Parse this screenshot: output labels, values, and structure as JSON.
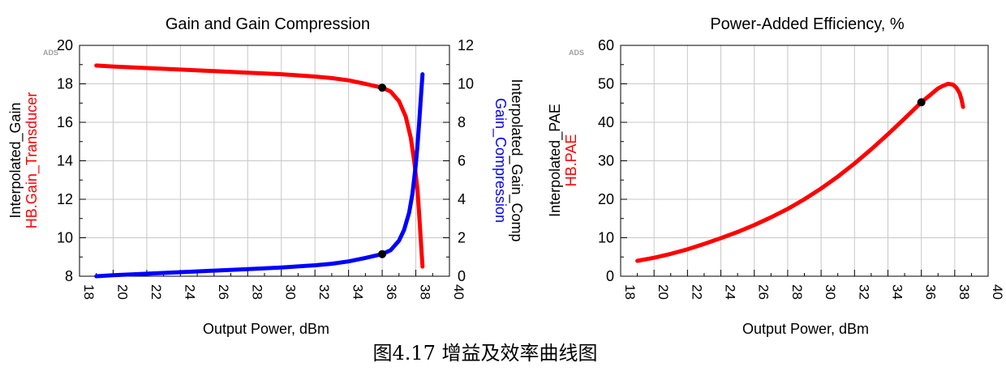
{
  "caption": "图4.17  增益及效率曲线图",
  "colors": {
    "red": "#ff0000",
    "blue": "#0000ff",
    "black": "#000000",
    "grid": "#c8c8c8"
  },
  "chart_data": [
    {
      "type": "line",
      "title": "Gain and Gain Compression",
      "xlabel": "Output Power, dBm",
      "ylabel_left": [
        "Interpolated_Gain",
        "HB.Gain_Transducer"
      ],
      "ylabel_right": [
        "Interpolated_Gain_Comp",
        "Gain_Compression"
      ],
      "corner_mark": "ADS",
      "xlim": [
        18,
        40
      ],
      "xticks": [
        18,
        20,
        22,
        24,
        26,
        28,
        30,
        32,
        34,
        36,
        38,
        40
      ],
      "ylim_left": [
        8,
        20
      ],
      "yticks_left": [
        8,
        10,
        12,
        14,
        16,
        18,
        20
      ],
      "ylim_right": [
        0,
        12
      ],
      "yticks_right": [
        0,
        2,
        4,
        6,
        8,
        10,
        12
      ],
      "grid": true,
      "series": [
        {
          "name": "HB.Gain_Transducer",
          "axis": "left",
          "color": "#ff0000",
          "x": [
            19.0,
            20.0,
            22.0,
            24.0,
            26.0,
            28.0,
            30.0,
            32.0,
            33.0,
            34.0,
            35.0,
            35.5,
            36.0,
            36.5,
            37.0,
            37.4,
            37.7,
            37.9,
            38.1,
            38.2,
            38.3,
            38.4
          ],
          "y": [
            18.95,
            18.9,
            18.82,
            18.74,
            18.66,
            18.58,
            18.5,
            18.38,
            18.3,
            18.18,
            18.0,
            17.9,
            17.8,
            17.6,
            17.1,
            16.3,
            15.2,
            14.0,
            12.5,
            11.2,
            9.8,
            8.5
          ]
        },
        {
          "name": "Gain_Compression",
          "axis": "right",
          "color": "#0000ff",
          "x": [
            19.0,
            20.0,
            22.0,
            24.0,
            26.0,
            28.0,
            30.0,
            32.0,
            33.0,
            34.0,
            35.0,
            35.5,
            36.0,
            36.5,
            37.0,
            37.3,
            37.6,
            37.8,
            38.0,
            38.1,
            38.2,
            38.3,
            38.4
          ],
          "y": [
            0.0,
            0.05,
            0.13,
            0.21,
            0.29,
            0.37,
            0.45,
            0.57,
            0.65,
            0.77,
            0.95,
            1.05,
            1.15,
            1.35,
            1.85,
            2.4,
            3.3,
            4.3,
            5.8,
            6.8,
            8.0,
            9.3,
            10.5
          ]
        }
      ],
      "markers": [
        {
          "axis": "left",
          "x": 36,
          "y": 17.8
        },
        {
          "axis": "right",
          "x": 36,
          "y": 1.15
        }
      ]
    },
    {
      "type": "line",
      "title": "Power-Added Efficiency, %",
      "xlabel": "Output Power, dBm",
      "ylabel_left": [
        "Interpolated_PAE",
        "HB.PAE"
      ],
      "corner_mark": "ADS",
      "xlim": [
        18,
        40
      ],
      "xticks": [
        18,
        20,
        22,
        24,
        26,
        28,
        30,
        32,
        34,
        36,
        38,
        40
      ],
      "ylim_left": [
        0,
        60
      ],
      "yticks_left": [
        0,
        10,
        20,
        30,
        40,
        50,
        60
      ],
      "grid": true,
      "series": [
        {
          "name": "HB.PAE",
          "axis": "left",
          "color": "#ff0000",
          "x": [
            19.0,
            20.0,
            21.0,
            22.0,
            23.0,
            24.0,
            25.0,
            26.0,
            27.0,
            28.0,
            29.0,
            30.0,
            31.0,
            32.0,
            33.0,
            34.0,
            35.0,
            36.0,
            36.5,
            37.0,
            37.3,
            37.6,
            37.9,
            38.1,
            38.3,
            38.4,
            38.5
          ],
          "y": [
            4.0,
            4.8,
            5.8,
            7.0,
            8.4,
            9.9,
            11.5,
            13.3,
            15.3,
            17.5,
            20.0,
            22.8,
            25.9,
            29.3,
            33.0,
            36.9,
            41.0,
            45.2,
            47.0,
            48.8,
            49.5,
            50.0,
            49.8,
            49.0,
            47.5,
            46.0,
            44.0
          ]
        }
      ],
      "markers": [
        {
          "axis": "left",
          "x": 36,
          "y": 45.2
        }
      ]
    }
  ]
}
